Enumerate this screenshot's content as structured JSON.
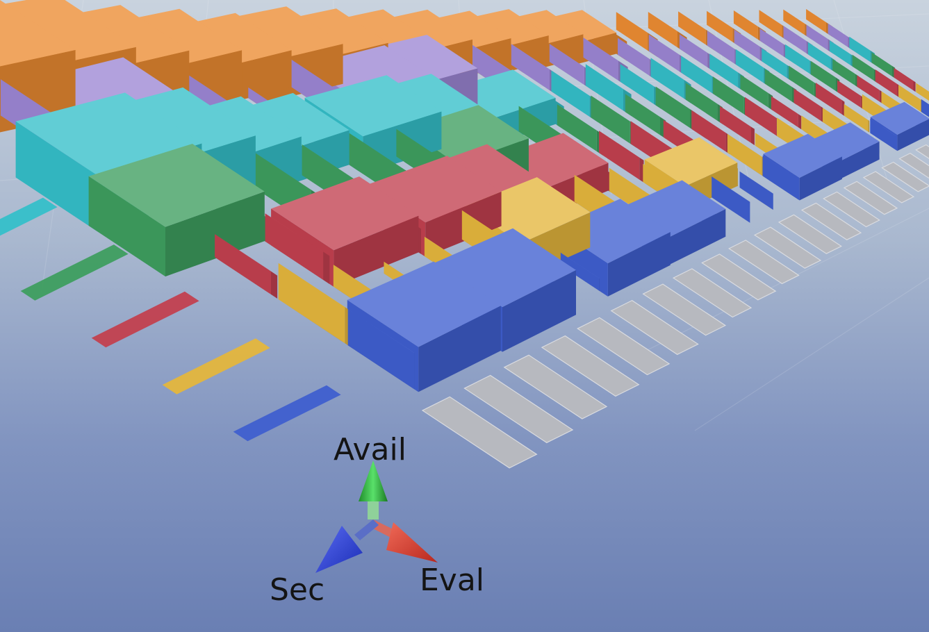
{
  "chart_data": {
    "type": "bar",
    "projection": "3d-perspective",
    "axis_labels": {
      "x": "Eval",
      "y": "Avail",
      "z": "Sec"
    },
    "series_colors": [
      "#3f5fcf",
      "#e4b63d",
      "#c2404f",
      "#3e9e5f",
      "#35bfc9",
      "#9c86d4",
      "#ec8c32"
    ],
    "row_count": 7,
    "column_count": 36,
    "visible_columns": 22,
    "values_rows": [
      [
        0.55,
        0.72,
        0.6,
        0.8,
        0.35,
        0.25,
        0.7,
        0.3,
        0.65,
        0.4,
        0.55,
        0.45,
        0.6,
        0.7,
        0.5,
        0.62,
        0.45,
        0.55,
        0.66,
        0.4,
        0.58,
        0.48,
        0.6,
        0.5,
        0.55,
        0.65,
        0.45,
        0.52,
        0.6,
        0.5,
        0.55,
        0.48,
        0.62,
        0.5,
        0.45,
        0.55
      ],
      [
        0.55,
        0.35,
        0.2,
        0.35,
        0.55,
        0.7,
        0.4,
        0.6,
        0.55,
        0.45,
        0.62,
        0.5,
        0.55,
        0.4,
        0.6,
        0.48,
        0.52,
        0.45,
        0.58,
        0.5,
        0.55,
        0.44,
        0.52,
        0.48,
        0.55,
        0.5,
        0.46,
        0.52,
        0.48,
        0.55,
        0.5,
        0.45,
        0.5,
        0.48,
        0.52,
        0.5
      ],
      [
        0.35,
        0.45,
        0.62,
        0.45,
        0.65,
        0.7,
        0.55,
        0.62,
        0.45,
        0.55,
        0.6,
        0.48,
        0.55,
        0.5,
        0.58,
        0.46,
        0.52,
        0.55,
        0.48,
        0.5,
        0.55,
        0.46,
        0.52,
        0.5,
        0.48,
        0.55,
        0.5,
        0.46,
        0.52,
        0.5,
        0.48,
        0.52,
        0.5,
        0.48,
        0.52,
        0.5
      ],
      [
        0.75,
        0.4,
        0.6,
        0.55,
        0.6,
        0.55,
        0.7,
        0.55,
        0.6,
        0.52,
        0.58,
        0.5,
        0.55,
        0.52,
        0.56,
        0.5,
        0.54,
        0.52,
        0.55,
        0.5,
        0.53,
        0.5,
        0.54,
        0.5,
        0.52,
        0.5,
        0.53,
        0.5,
        0.52,
        0.5,
        0.52,
        0.5,
        0.51,
        0.5,
        0.52,
        0.5
      ],
      [
        0.85,
        0.85,
        0.65,
        0.62,
        0.5,
        0.75,
        0.7,
        0.55,
        0.62,
        0.58,
        0.55,
        0.6,
        0.52,
        0.58,
        0.55,
        0.52,
        0.56,
        0.5,
        0.54,
        0.52,
        0.5,
        0.55,
        0.52,
        0.5,
        0.53,
        0.5,
        0.52,
        0.5,
        0.51,
        0.5,
        0.52,
        0.5,
        0.51,
        0.5,
        0.5,
        0.5
      ],
      [
        0.55,
        0.7,
        0.28,
        0.45,
        0.2,
        0.55,
        0.65,
        0.8,
        0.45,
        0.6,
        0.55,
        0.5,
        0.58,
        0.52,
        0.55,
        0.5,
        0.54,
        0.52,
        0.5,
        0.53,
        0.51,
        0.5,
        0.52,
        0.5,
        0.51,
        0.5,
        0.52,
        0.5,
        0.5,
        0.51,
        0.5,
        0.5,
        0.51,
        0.5,
        0.5,
        0.5
      ],
      [
        1.0,
        1.0,
        0.85,
        0.78,
        0.7,
        0.8,
        0.75,
        0.72,
        0.7,
        0.66,
        0.68,
        0.64,
        0.62,
        0.6,
        0.58,
        0.56,
        0.55,
        0.54,
        0.53,
        0.52,
        0.51,
        0.5,
        0.5,
        0.5,
        0.5,
        0.5,
        0.5,
        0.5,
        0.5,
        0.5,
        0.5,
        0.5,
        0.5,
        0.5,
        0.5,
        0.5
      ]
    ]
  }
}
